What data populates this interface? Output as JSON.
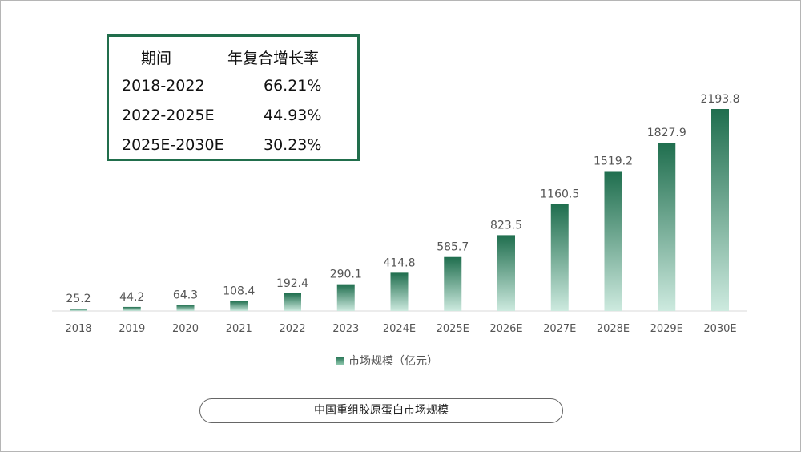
{
  "chart_data": {
    "type": "bar",
    "categories": [
      "2018",
      "2019",
      "2020",
      "2021",
      "2022",
      "2023",
      "2024E",
      "2025E",
      "2026E",
      "2027E",
      "2028E",
      "2029E",
      "2030E"
    ],
    "values": [
      25.2,
      44.2,
      64.3,
      108.4,
      192.4,
      290.1,
      414.8,
      585.7,
      823.5,
      1160.5,
      1519.2,
      1827.9,
      2193.8
    ],
    "value_labels": [
      "25.2",
      "44.2",
      "64.3",
      "108.4",
      "192.4",
      "290.1",
      "414.8",
      "585.7",
      "823.5",
      "1160.5",
      "1519.2",
      "1827.9",
      "2193.8"
    ],
    "series": [
      {
        "name": "市场规模（亿元）"
      }
    ],
    "title": "中国重组胶原蛋白市场规模",
    "ylim": [
      0,
      2400
    ],
    "grid": false,
    "legend_position": "bottom",
    "colors": {
      "bar_top": "#1f6e4e",
      "bar_bottom": "#cdeadf",
      "table_border": "#216e4c"
    }
  },
  "cagr_table": {
    "headers": [
      "期间",
      "年复合增长率"
    ],
    "rows": [
      [
        "2018-2022",
        "66.21%"
      ],
      [
        "2022-2025E",
        "44.93%"
      ],
      [
        "2025E-2030E",
        "30.23%"
      ]
    ]
  }
}
